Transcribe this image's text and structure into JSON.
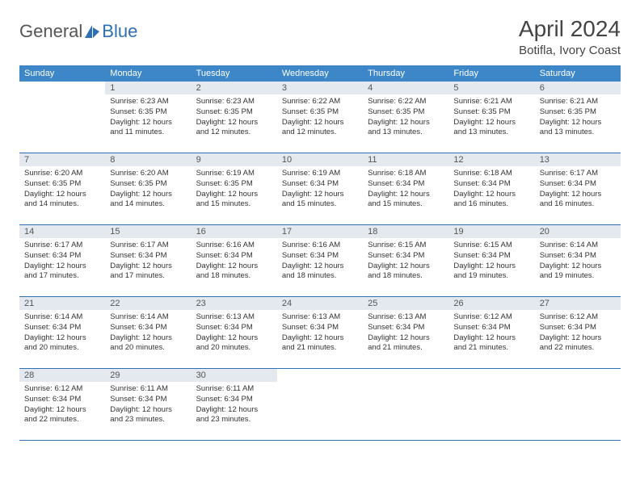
{
  "brand": {
    "word1": "General",
    "word2": "Blue",
    "color_blue": "#2f6fb3",
    "color_gray": "#555555"
  },
  "header": {
    "month_title": "April 2024",
    "location": "Botifla, Ivory Coast"
  },
  "theme": {
    "header_bg": "#3d87c9",
    "header_text": "#ffffff",
    "daynum_bg": "#e4e9ef",
    "cell_border": "#2f6fb3",
    "body_text": "#333333",
    "font_family": "Arial",
    "month_title_fontsize": 28,
    "location_fontsize": 15,
    "weekday_fontsize": 11,
    "daynum_fontsize": 11,
    "cell_fontsize": 9.5
  },
  "weekdays": [
    "Sunday",
    "Monday",
    "Tuesday",
    "Wednesday",
    "Thursday",
    "Friday",
    "Saturday"
  ],
  "weeks": [
    [
      null,
      {
        "n": "1",
        "sunrise": "6:23 AM",
        "sunset": "6:35 PM",
        "daylight": "12 hours and 11 minutes."
      },
      {
        "n": "2",
        "sunrise": "6:23 AM",
        "sunset": "6:35 PM",
        "daylight": "12 hours and 12 minutes."
      },
      {
        "n": "3",
        "sunrise": "6:22 AM",
        "sunset": "6:35 PM",
        "daylight": "12 hours and 12 minutes."
      },
      {
        "n": "4",
        "sunrise": "6:22 AM",
        "sunset": "6:35 PM",
        "daylight": "12 hours and 13 minutes."
      },
      {
        "n": "5",
        "sunrise": "6:21 AM",
        "sunset": "6:35 PM",
        "daylight": "12 hours and 13 minutes."
      },
      {
        "n": "6",
        "sunrise": "6:21 AM",
        "sunset": "6:35 PM",
        "daylight": "12 hours and 13 minutes."
      }
    ],
    [
      {
        "n": "7",
        "sunrise": "6:20 AM",
        "sunset": "6:35 PM",
        "daylight": "12 hours and 14 minutes."
      },
      {
        "n": "8",
        "sunrise": "6:20 AM",
        "sunset": "6:35 PM",
        "daylight": "12 hours and 14 minutes."
      },
      {
        "n": "9",
        "sunrise": "6:19 AM",
        "sunset": "6:35 PM",
        "daylight": "12 hours and 15 minutes."
      },
      {
        "n": "10",
        "sunrise": "6:19 AM",
        "sunset": "6:34 PM",
        "daylight": "12 hours and 15 minutes."
      },
      {
        "n": "11",
        "sunrise": "6:18 AM",
        "sunset": "6:34 PM",
        "daylight": "12 hours and 15 minutes."
      },
      {
        "n": "12",
        "sunrise": "6:18 AM",
        "sunset": "6:34 PM",
        "daylight": "12 hours and 16 minutes."
      },
      {
        "n": "13",
        "sunrise": "6:17 AM",
        "sunset": "6:34 PM",
        "daylight": "12 hours and 16 minutes."
      }
    ],
    [
      {
        "n": "14",
        "sunrise": "6:17 AM",
        "sunset": "6:34 PM",
        "daylight": "12 hours and 17 minutes."
      },
      {
        "n": "15",
        "sunrise": "6:17 AM",
        "sunset": "6:34 PM",
        "daylight": "12 hours and 17 minutes."
      },
      {
        "n": "16",
        "sunrise": "6:16 AM",
        "sunset": "6:34 PM",
        "daylight": "12 hours and 18 minutes."
      },
      {
        "n": "17",
        "sunrise": "6:16 AM",
        "sunset": "6:34 PM",
        "daylight": "12 hours and 18 minutes."
      },
      {
        "n": "18",
        "sunrise": "6:15 AM",
        "sunset": "6:34 PM",
        "daylight": "12 hours and 18 minutes."
      },
      {
        "n": "19",
        "sunrise": "6:15 AM",
        "sunset": "6:34 PM",
        "daylight": "12 hours and 19 minutes."
      },
      {
        "n": "20",
        "sunrise": "6:14 AM",
        "sunset": "6:34 PM",
        "daylight": "12 hours and 19 minutes."
      }
    ],
    [
      {
        "n": "21",
        "sunrise": "6:14 AM",
        "sunset": "6:34 PM",
        "daylight": "12 hours and 20 minutes."
      },
      {
        "n": "22",
        "sunrise": "6:14 AM",
        "sunset": "6:34 PM",
        "daylight": "12 hours and 20 minutes."
      },
      {
        "n": "23",
        "sunrise": "6:13 AM",
        "sunset": "6:34 PM",
        "daylight": "12 hours and 20 minutes."
      },
      {
        "n": "24",
        "sunrise": "6:13 AM",
        "sunset": "6:34 PM",
        "daylight": "12 hours and 21 minutes."
      },
      {
        "n": "25",
        "sunrise": "6:13 AM",
        "sunset": "6:34 PM",
        "daylight": "12 hours and 21 minutes."
      },
      {
        "n": "26",
        "sunrise": "6:12 AM",
        "sunset": "6:34 PM",
        "daylight": "12 hours and 21 minutes."
      },
      {
        "n": "27",
        "sunrise": "6:12 AM",
        "sunset": "6:34 PM",
        "daylight": "12 hours and 22 minutes."
      }
    ],
    [
      {
        "n": "28",
        "sunrise": "6:12 AM",
        "sunset": "6:34 PM",
        "daylight": "12 hours and 22 minutes."
      },
      {
        "n": "29",
        "sunrise": "6:11 AM",
        "sunset": "6:34 PM",
        "daylight": "12 hours and 23 minutes."
      },
      {
        "n": "30",
        "sunrise": "6:11 AM",
        "sunset": "6:34 PM",
        "daylight": "12 hours and 23 minutes."
      },
      null,
      null,
      null,
      null
    ]
  ],
  "labels": {
    "sunrise": "Sunrise:",
    "sunset": "Sunset:",
    "daylight": "Daylight:"
  }
}
